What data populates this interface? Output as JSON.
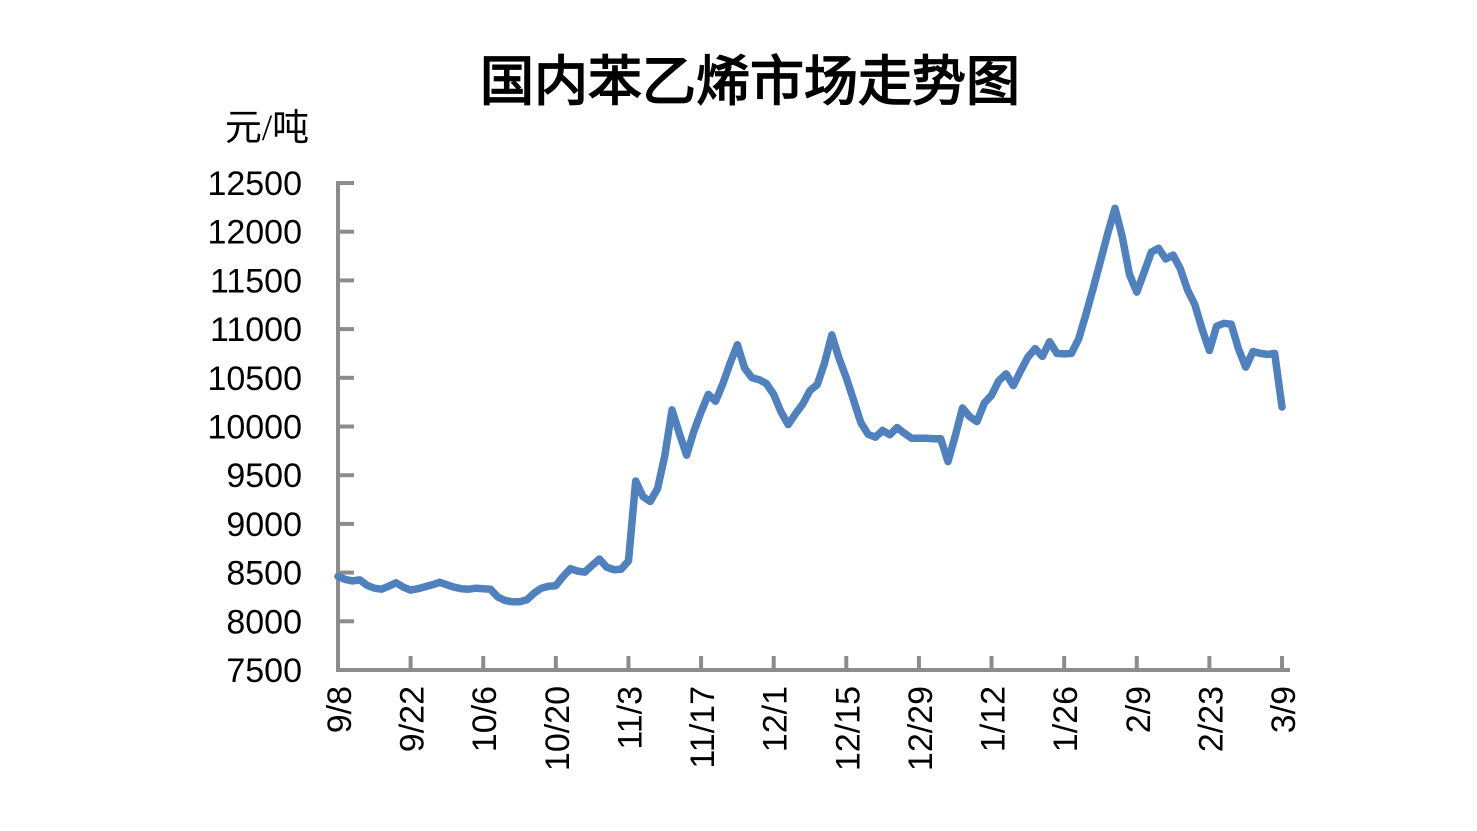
{
  "chart_data": {
    "type": "line",
    "title": "国内苯乙烯市场走势图",
    "ylabel": "元/吨",
    "xlabel": "",
    "ylim": [
      7500,
      12500
    ],
    "y_ticks": [
      7500,
      8000,
      8500,
      9000,
      9500,
      10000,
      10500,
      11000,
      11500,
      12000,
      12500
    ],
    "x_tick_labels": [
      "9/8",
      "9/22",
      "10/6",
      "10/20",
      "11/3",
      "11/17",
      "12/1",
      "12/15",
      "12/29",
      "1/12",
      "1/26",
      "2/9",
      "2/23",
      "3/9"
    ],
    "points_per_label_interval": 10,
    "grid": false,
    "legend_position": "none",
    "series": [
      {
        "color": "#4E81BD",
        "values": [
          8460,
          8430,
          8415,
          8425,
          8370,
          8340,
          8330,
          8360,
          8395,
          8350,
          8320,
          8335,
          8355,
          8375,
          8400,
          8375,
          8350,
          8335,
          8330,
          8340,
          8335,
          8330,
          8250,
          8215,
          8200,
          8200,
          8220,
          8290,
          8340,
          8360,
          8365,
          8460,
          8540,
          8515,
          8505,
          8575,
          8640,
          8555,
          8530,
          8535,
          8620,
          9440,
          9280,
          9230,
          9360,
          9700,
          10170,
          9930,
          9705,
          9950,
          10150,
          10330,
          10260,
          10440,
          10650,
          10840,
          10600,
          10500,
          10480,
          10440,
          10330,
          10150,
          10020,
          10130,
          10230,
          10370,
          10430,
          10650,
          10940,
          10700,
          10500,
          10270,
          10040,
          9920,
          9890,
          9960,
          9915,
          9990,
          9930,
          9880,
          9880,
          9880,
          9875,
          9875,
          9640,
          9900,
          10190,
          10100,
          10050,
          10240,
          10320,
          10470,
          10540,
          10420,
          10570,
          10710,
          10800,
          10720,
          10870,
          10750,
          10745,
          10750,
          10900,
          11150,
          11420,
          11700,
          11980,
          12240,
          11950,
          11560,
          11380,
          11580,
          11790,
          11830,
          11720,
          11760,
          11620,
          11400,
          11250,
          11000,
          10780,
          11030,
          11060,
          11050,
          10800,
          10610,
          10770,
          10750,
          10740,
          10750,
          10200
        ]
      }
    ]
  },
  "colors": {
    "line": "#4E81BD",
    "axis": "#8C8C8C",
    "text": "#000000",
    "background": "#FFFFFF"
  }
}
